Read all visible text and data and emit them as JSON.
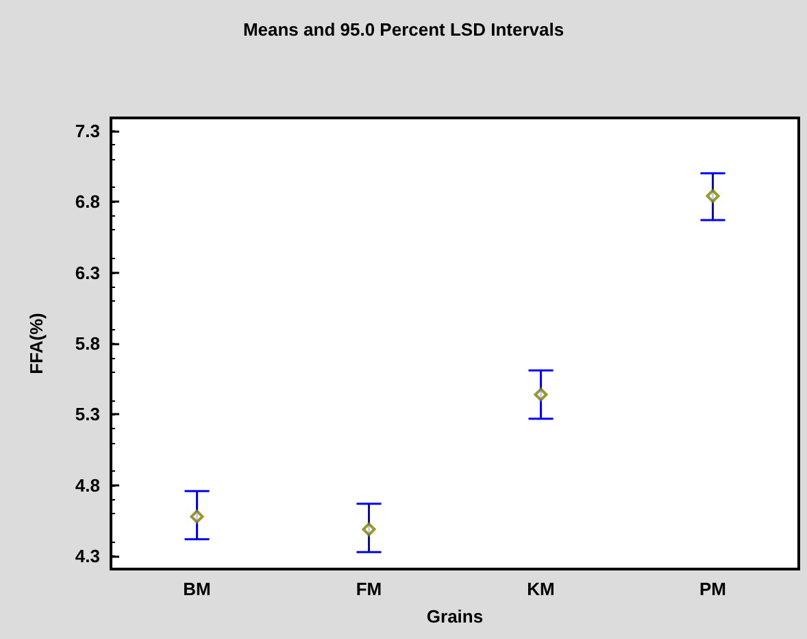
{
  "chart_data": {
    "type": "scatter",
    "title": "Means and 95.0 Percent LSD Intervals",
    "xlabel": "Grains",
    "ylabel": "FFA(%)",
    "categories": [
      "BM",
      "FM",
      "KM",
      "PM"
    ],
    "series": [
      {
        "color": "#808000",
        "values": [
          4.58,
          4.49,
          5.44,
          6.84
        ],
        "errors": [
          [
            4.42,
            4.76
          ],
          [
            4.33,
            4.67
          ],
          [
            5.27,
            5.61
          ],
          [
            6.67,
            7.0
          ]
        ]
      }
    ],
    "marker": "diamond",
    "ylim": [
      4.21,
      7.39
    ],
    "yticks": [
      4.3,
      4.8,
      5.3,
      5.8,
      6.3,
      6.8,
      7.3
    ],
    "grid": false
  }
}
